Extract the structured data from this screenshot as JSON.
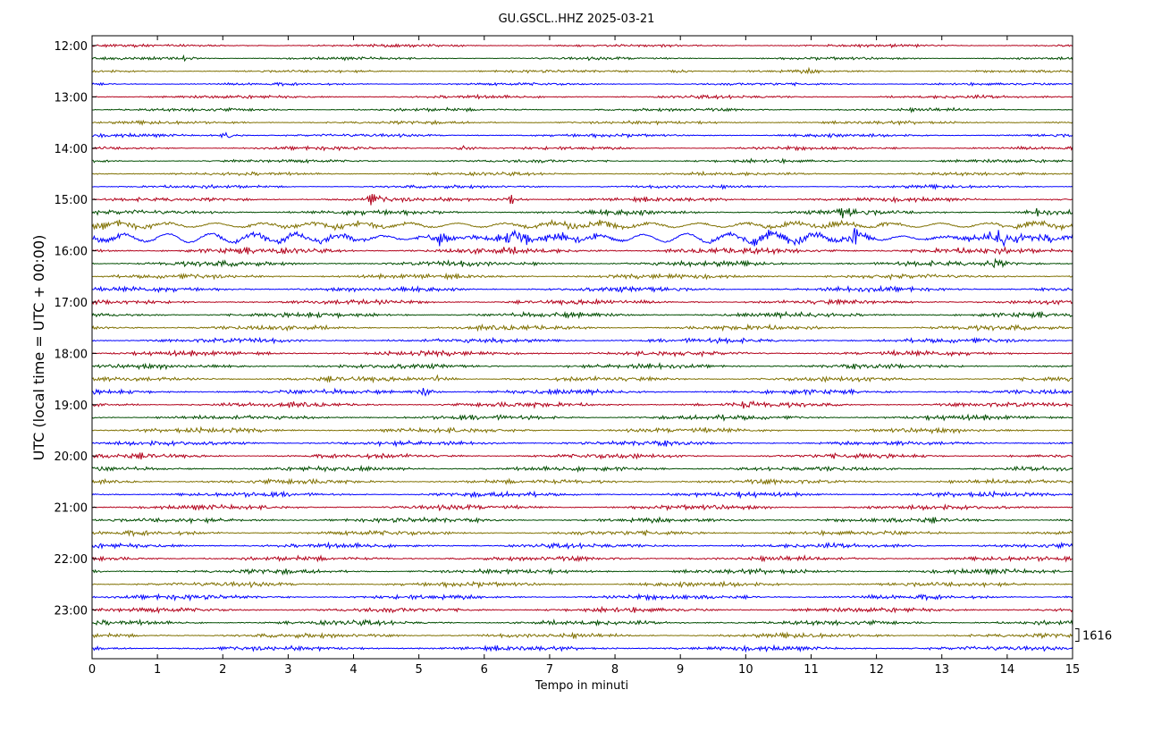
{
  "chart_data": {
    "type": "line",
    "title": "GU.GSCL..HHZ 2025-03-21",
    "xlabel": "Tempo in minuti",
    "ylabel": "UTC (local time = UTC + 00:00)",
    "xlim": [
      0,
      15
    ],
    "x_ticks": [
      0,
      1,
      2,
      3,
      4,
      5,
      6,
      7,
      8,
      9,
      10,
      11,
      12,
      13,
      14,
      15
    ],
    "rows_start": "12:00",
    "row_interval_minutes": 15,
    "row_count": 48,
    "hour_labels": [
      "12:00",
      "13:00",
      "14:00",
      "15:00",
      "16:00",
      "17:00",
      "18:00",
      "19:00",
      "20:00",
      "21:00",
      "22:00",
      "23:00"
    ],
    "series_colors": [
      "#b2001a",
      "#004d00",
      "#7f7000",
      "#0000ff"
    ],
    "scale_bar_label": "1616",
    "grid": false,
    "events": [
      {
        "row": 1,
        "minute": 1.4,
        "amp": 2.0
      },
      {
        "row": 2,
        "minute": 9.0,
        "amp": 3.0
      },
      {
        "row": 2,
        "minute": 11.0,
        "amp": 1.5
      },
      {
        "row": 7,
        "minute": 2.1,
        "amp": 2.5
      },
      {
        "row": 8,
        "minute": 5.7,
        "amp": 2.2
      },
      {
        "row": 12,
        "minute": 4.3,
        "amp": 3.0
      },
      {
        "row": 12,
        "minute": 6.4,
        "amp": 2.2
      },
      {
        "row": 13,
        "minute": 11.5,
        "amp": 2.0
      },
      {
        "row": 13,
        "minute": 14.5,
        "amp": 1.8
      },
      {
        "row": 15,
        "minute": 5.3,
        "amp": 3.0
      },
      {
        "row": 15,
        "minute": 6.5,
        "amp": 2.5
      },
      {
        "row": 15,
        "minute": 11.7,
        "amp": 3.0
      },
      {
        "row": 15,
        "minute": 13.9,
        "amp": 2.5
      },
      {
        "row": 17,
        "minute": 13.8,
        "amp": 2.0
      },
      {
        "row": 26,
        "minute": 5.3,
        "amp": 2.0
      },
      {
        "row": 27,
        "minute": 5.1,
        "amp": 2.2
      },
      {
        "row": 28,
        "minute": 10.0,
        "amp": 1.6
      }
    ]
  }
}
